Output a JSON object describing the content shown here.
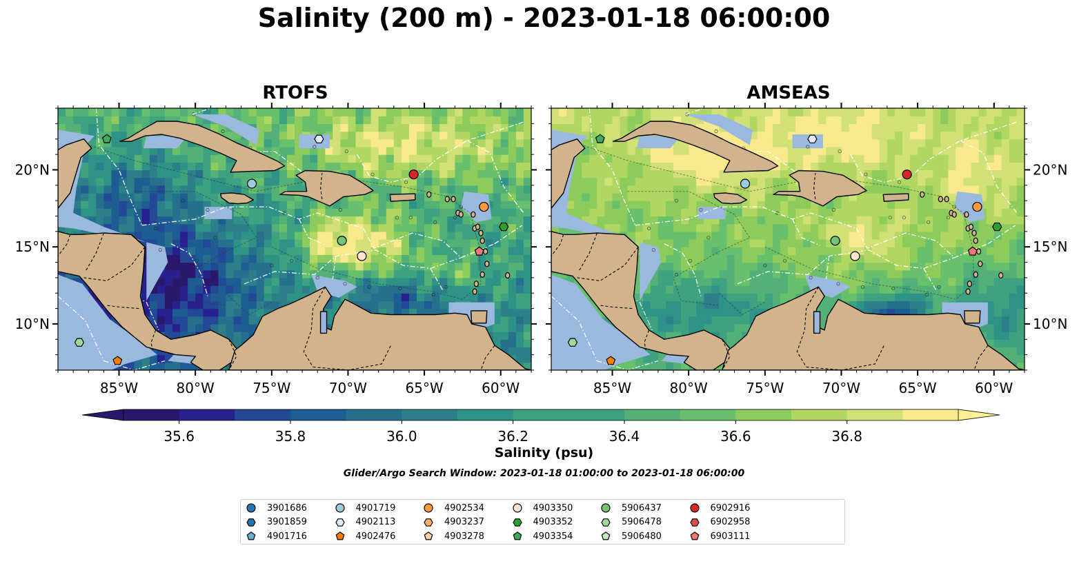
{
  "title": "Salinity (200 m) - 2023-01-18 06:00:00",
  "panels": [
    {
      "title": "RTOFS",
      "palette": "rtofs"
    },
    {
      "title": "AMSEAS",
      "palette": "amseas"
    }
  ],
  "map": {
    "lon_range": [
      -89,
      -58
    ],
    "lat_range": [
      7,
      24
    ],
    "lon_ticks": [
      {
        "value": -85,
        "label": "85°W"
      },
      {
        "value": -80,
        "label": "80°W"
      },
      {
        "value": -75,
        "label": "75°W"
      },
      {
        "value": -70,
        "label": "70°W"
      },
      {
        "value": -65,
        "label": "65°W"
      },
      {
        "value": -60,
        "label": "60°W"
      }
    ],
    "lat_ticks": [
      {
        "value": 10,
        "label": "10°N"
      },
      {
        "value": 15,
        "label": "15°N"
      },
      {
        "value": 20,
        "label": "20°N"
      }
    ],
    "colors": {
      "land": "#d2b48c",
      "shallow": "#9bb8df",
      "coast": "#000000",
      "gridline": "#ffffff"
    }
  },
  "colorbar": {
    "label": "Salinity (psu)",
    "min": 35.5,
    "max": 37.0,
    "step": 0.1,
    "ticks": [
      {
        "value": 35.6,
        "label": "35.6"
      },
      {
        "value": 35.8,
        "label": "35.8"
      },
      {
        "value": 36.0,
        "label": "36.0"
      },
      {
        "value": 36.2,
        "label": "36.2"
      },
      {
        "value": 36.4,
        "label": "36.4"
      },
      {
        "value": 36.6,
        "label": "36.6"
      },
      {
        "value": 36.8,
        "label": "36.8"
      }
    ],
    "colors": [
      "#2a186c",
      "#29208f",
      "#234896",
      "#1d5d91",
      "#27708d",
      "#2d808a",
      "#2e9286",
      "#3ea280",
      "#53b177",
      "#68c06c",
      "#8ccb5c",
      "#b1d763",
      "#d2e177",
      "#f8e98c"
    ],
    "extend_low": "#2a186c",
    "extend_high": "#fcef93"
  },
  "search_window": "Glider/Argo Search Window: 2023-01-18 01:00:00 to 2023-01-18 06:00:00",
  "platforms": [
    {
      "id": "3901686",
      "marker": "circle",
      "color": "#1f77b4"
    },
    {
      "id": "3901859",
      "marker": "hexagon",
      "color": "#1f77b4"
    },
    {
      "id": "4901716",
      "marker": "pentagon",
      "color": "#6baed6"
    },
    {
      "id": "4901719",
      "marker": "circle",
      "color": "#9ecae1",
      "lon": -76.3,
      "lat": 19.1
    },
    {
      "id": "4902113",
      "marker": "hexagon",
      "color": "#deebf7",
      "lon": -71.9,
      "lat": 22.0
    },
    {
      "id": "4902476",
      "marker": "pentagon",
      "color": "#f77f00",
      "lon": -85.1,
      "lat": 7.6
    },
    {
      "id": "4902534",
      "marker": "circle",
      "color": "#fd9a3c",
      "lon": -61.1,
      "lat": 17.6
    },
    {
      "id": "4903237",
      "marker": "hexagon",
      "color": "#fdae6b"
    },
    {
      "id": "4903278",
      "marker": "pentagon",
      "color": "#fdd0a2"
    },
    {
      "id": "4903350",
      "marker": "circle",
      "color": "#fee6ce",
      "lon": -69.1,
      "lat": 14.4
    },
    {
      "id": "4903352",
      "marker": "hexagon",
      "color": "#2ca02c",
      "lon": -59.8,
      "lat": 16.3
    },
    {
      "id": "4903354",
      "marker": "pentagon",
      "color": "#41ab5d",
      "lon": -85.8,
      "lat": 22.0
    },
    {
      "id": "5906437",
      "marker": "circle",
      "color": "#74c476",
      "lon": -70.4,
      "lat": 15.4
    },
    {
      "id": "5906478",
      "marker": "hexagon",
      "color": "#a1d99b",
      "lon": -87.6,
      "lat": 8.8
    },
    {
      "id": "5906480",
      "marker": "pentagon",
      "color": "#c7e9c0"
    },
    {
      "id": "6902916",
      "marker": "circle",
      "color": "#d62728",
      "lon": -65.7,
      "lat": 19.7
    },
    {
      "id": "6902958",
      "marker": "hexagon",
      "color": "#de4b4b"
    },
    {
      "id": "6903111",
      "marker": "pentagon",
      "color": "#f07878",
      "lon": -61.4,
      "lat": 14.7
    }
  ]
}
